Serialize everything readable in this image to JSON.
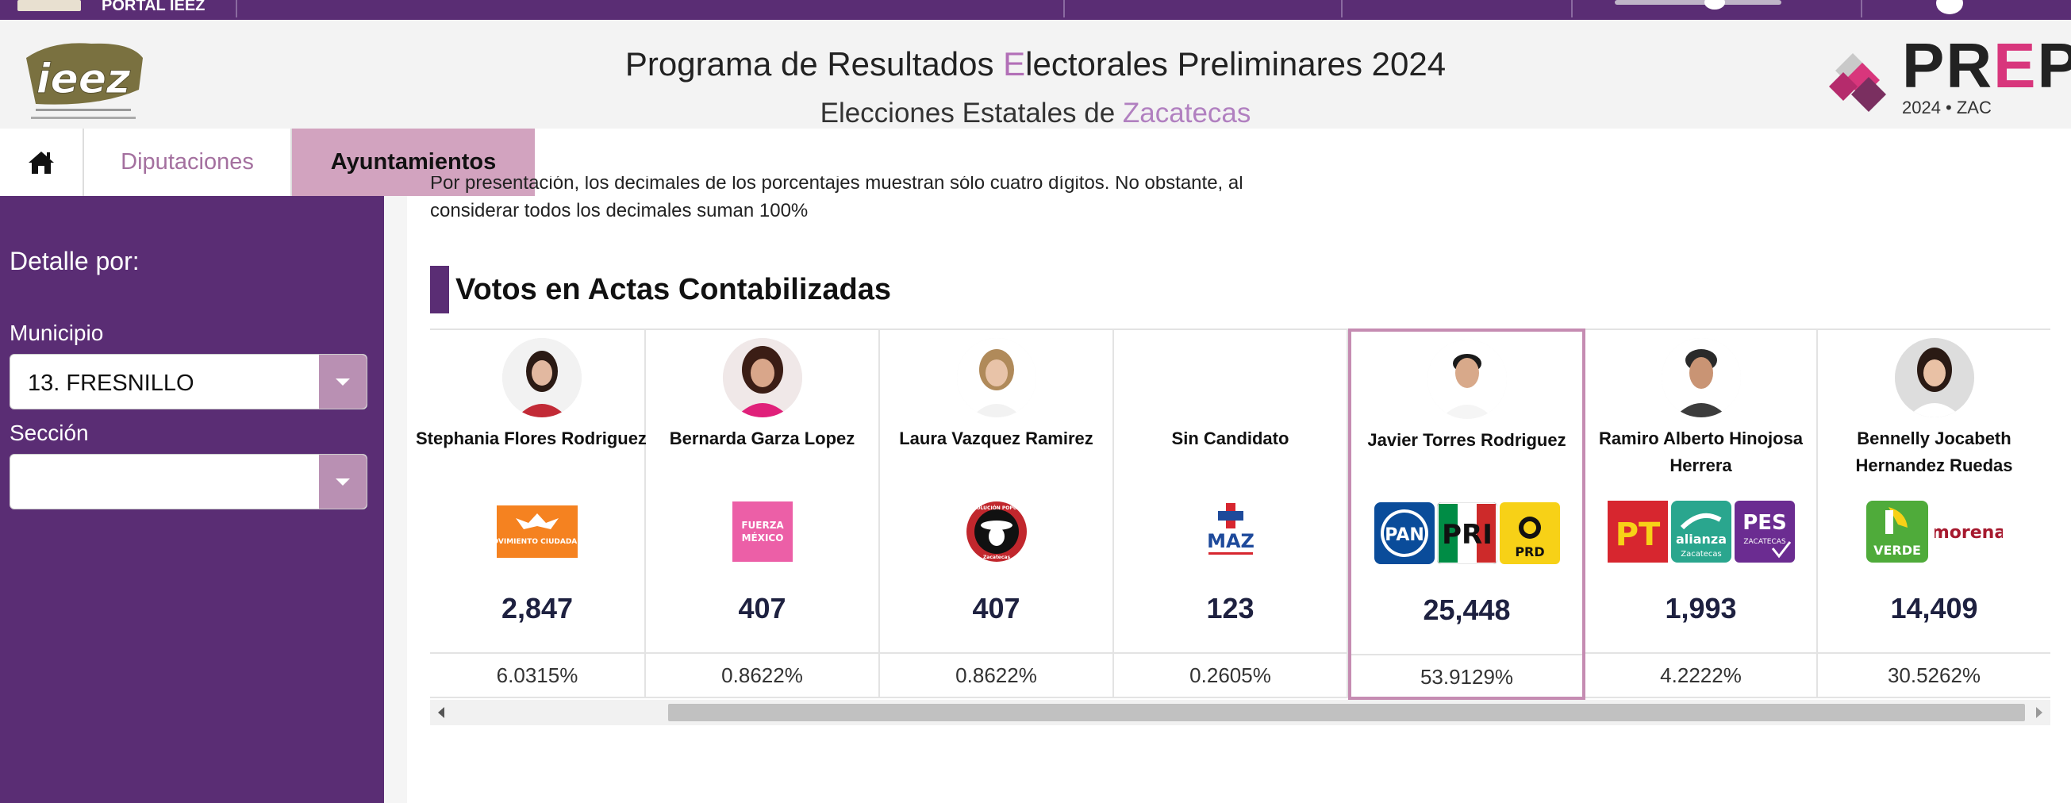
{
  "topbar": {
    "label": "PORTAL IEEZ"
  },
  "header": {
    "title_prefix": "Programa de Resultados ",
    "title_accent": "E",
    "title_suffix": "lectorales Preliminares 2024",
    "subtitle_prefix": "Elecciones Estatales de ",
    "subtitle_accent": "Zacatecas",
    "ieez_logo_text": "ieez",
    "prep_word_a": "PR",
    "prep_word_e": "E",
    "prep_word_b": "P",
    "prep_year": "2024 • ZAC",
    "accent_color": "#b26fb7",
    "brand_purple": "#5a2d74",
    "prep_pink": "#d8367c"
  },
  "tabs": [
    {
      "label": "",
      "icon": "home-icon"
    },
    {
      "label": "Diputaciones"
    },
    {
      "label": "Ayuntamientos",
      "active": true
    }
  ],
  "sidebar": {
    "heading": "Detalle por:",
    "municipio_label": "Municipio",
    "municipio_value": "13. FRESNILLO",
    "seccion_label": "Sección",
    "seccion_value": ""
  },
  "note": {
    "line1": "Por presentación, los decimales de los porcentajes muestran sólo cuatro dígitos. No obstante, al",
    "line2": "considerar todos los decimales suman 100%"
  },
  "section_title": "Votos en Actas Contabilizadas",
  "candidates": [
    {
      "name": "Stephania Flores Rodriguez",
      "votes": "2,847",
      "pct": "6.0315%",
      "parties": [
        "MOVIMIENTO CIUDADANO"
      ]
    },
    {
      "name": "Bernarda Garza Lopez",
      "votes": "407",
      "pct": "0.8622%",
      "parties": [
        "FUERZA MÉXICO"
      ]
    },
    {
      "name": "Laura Vazquez Ramirez",
      "votes": "407",
      "pct": "0.8622%",
      "parties": [
        "REVOLUCIÓN POPULAR"
      ]
    },
    {
      "name": "Sin Candidato",
      "votes": "123",
      "pct": "0.2605%",
      "parties": [
        "MAZ"
      ]
    },
    {
      "name": "Javier Torres Rodriguez",
      "votes": "25,448",
      "pct": "53.9129%",
      "parties": [
        "PAN",
        "PRI",
        "PRD"
      ],
      "winner": true
    },
    {
      "name": "Ramiro Alberto Hinojosa Herrera",
      "votes": "1,993",
      "pct": "4.2222%",
      "parties": [
        "PT",
        "alianza Zacatecas",
        "PES Zacatecas"
      ]
    },
    {
      "name": "Bennelly Jocabeth Hernandez Ruedas",
      "votes": "14,409",
      "pct": "30.5262%",
      "parties": [
        "VERDE",
        "morena"
      ]
    }
  ],
  "party_logo_text": {
    "mc": "MOVIMIENTO CIUDADANO",
    "fm_a": "FUERZA",
    "fm_b": "MÉXICO",
    "rp_a": "REVOLUCIÓN POPULAR",
    "rp_b": "Zacatecas",
    "maz": "MAZ",
    "pan": "PAN",
    "pri": "PRI",
    "prd": "PRD",
    "pt": "PT",
    "alianza_a": "alianza",
    "alianza_b": "Zacatecas",
    "pes_a": "PES",
    "pes_b": "ZACATECAS",
    "verde": "VERDE",
    "morena": "morena"
  }
}
